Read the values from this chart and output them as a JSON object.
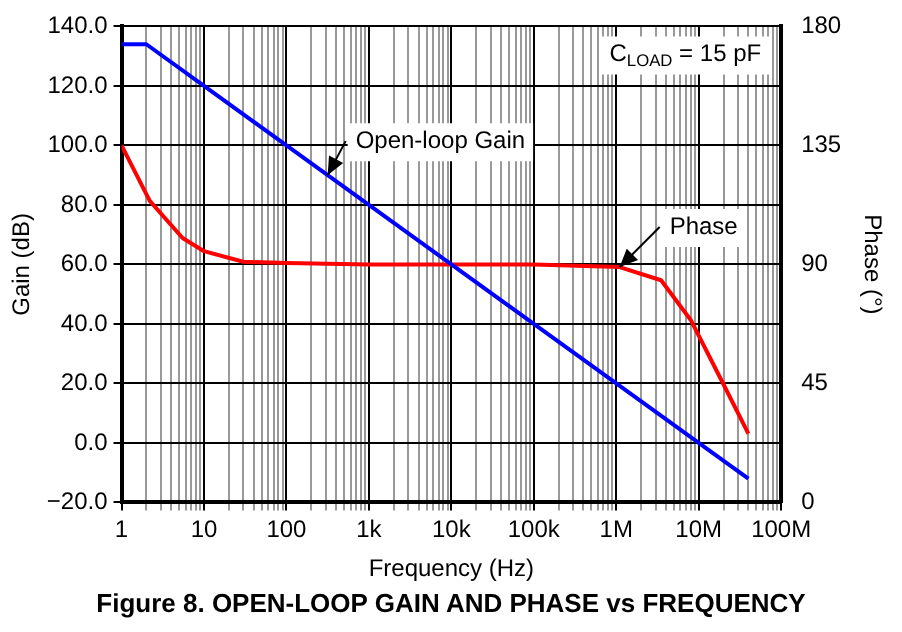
{
  "chart_data": {
    "type": "line",
    "title": "Figure 8. OPEN-LOOP GAIN AND PHASE vs FREQUENCY",
    "xlabel": "Frequency (Hz)",
    "ylabel": "Gain (dB)",
    "y2label": "Phase (°)",
    "log": "x",
    "grid": true,
    "legend": false,
    "marker": "none",
    "line_style": "solid",
    "xlim": [
      1,
      100000000
    ],
    "xticks": [
      1,
      10,
      100,
      {
        "value": 1000,
        "label": "1k"
      },
      {
        "value": 10000,
        "label": "10k"
      },
      {
        "value": 100000,
        "label": "100k"
      },
      {
        "value": 1000000,
        "label": "1M"
      },
      {
        "value": 10000000,
        "label": "10M"
      },
      {
        "value": 100000000,
        "label": "100M"
      },
      {
        "value": 2,
        "label": null
      },
      {
        "value": 3,
        "label": null
      },
      {
        "value": 4,
        "label": null
      },
      {
        "value": 5,
        "label": null
      },
      {
        "value": 6,
        "label": null
      },
      {
        "value": 7,
        "label": null
      },
      {
        "value": 8,
        "label": null
      },
      {
        "value": 9,
        "label": null
      },
      {
        "value": 20,
        "label": null
      },
      {
        "value": 30,
        "label": null
      },
      {
        "value": 40,
        "label": null
      },
      {
        "value": 50,
        "label": null
      },
      {
        "value": 60,
        "label": null
      },
      {
        "value": 70,
        "label": null
      },
      {
        "value": 80,
        "label": null
      },
      {
        "value": 90,
        "label": null
      },
      {
        "value": 200,
        "label": null
      },
      {
        "value": 300,
        "label": null
      },
      {
        "value": 400,
        "label": null
      },
      {
        "value": 500,
        "label": null
      },
      {
        "value": 600,
        "label": null
      },
      {
        "value": 700,
        "label": null
      },
      {
        "value": 800,
        "label": null
      },
      {
        "value": 900,
        "label": null
      },
      {
        "value": 2000,
        "label": null
      },
      {
        "value": 3000,
        "label": null
      },
      {
        "value": 4000,
        "label": null
      },
      {
        "value": 5000,
        "label": null
      },
      {
        "value": 6000,
        "label": null
      },
      {
        "value": 7000,
        "label": null
      },
      {
        "value": 8000,
        "label": null
      },
      {
        "value": 9000,
        "label": null
      },
      {
        "value": 20000,
        "label": null
      },
      {
        "value": 30000,
        "label": null
      },
      {
        "value": 40000,
        "label": null
      },
      {
        "value": 50000,
        "label": null
      },
      {
        "value": 60000,
        "label": null
      },
      {
        "value": 70000,
        "label": null
      },
      {
        "value": 80000,
        "label": null
      },
      {
        "value": 90000,
        "label": null
      },
      {
        "value": 200000,
        "label": null
      },
      {
        "value": 300000,
        "label": null
      },
      {
        "value": 400000,
        "label": null
      },
      {
        "value": 500000,
        "label": null
      },
      {
        "value": 600000,
        "label": null
      },
      {
        "value": 700000,
        "label": null
      },
      {
        "value": 800000,
        "label": null
      },
      {
        "value": 900000,
        "label": null
      },
      {
        "value": 2000000,
        "label": null
      },
      {
        "value": 3000000,
        "label": null
      },
      {
        "value": 4000000,
        "label": null
      },
      {
        "value": 5000000,
        "label": null
      },
      {
        "value": 6000000,
        "label": null
      },
      {
        "value": 7000000,
        "label": null
      },
      {
        "value": 8000000,
        "label": null
      },
      {
        "value": 9000000,
        "label": null
      },
      {
        "value": 20000000,
        "label": null
      },
      {
        "value": 30000000,
        "label": null
      },
      {
        "value": 40000000,
        "label": null
      },
      {
        "value": 50000000,
        "label": null
      },
      {
        "value": 60000000,
        "label": null
      },
      {
        "value": 70000000,
        "label": null
      },
      {
        "value": 80000000,
        "label": null
      },
      {
        "value": 90000000,
        "label": null
      }
    ],
    "ylim": [
      -20,
      140
    ],
    "yticks": [
      {
        "value": -20,
        "label": "−20.0"
      },
      {
        "value": 0,
        "label": "0.0"
      },
      {
        "value": 20,
        "label": "20.0"
      },
      {
        "value": 40,
        "label": "40.0"
      },
      {
        "value": 60,
        "label": "60.0"
      },
      {
        "value": 80,
        "label": "80.0"
      },
      {
        "value": 100,
        "label": "100.0"
      },
      {
        "value": 120,
        "label": "120.0"
      },
      {
        "value": 140,
        "label": "140.0"
      }
    ],
    "y2lim": [
      0,
      180
    ],
    "y2ticks": [
      0,
      45,
      90,
      135,
      180
    ],
    "series": [
      {
        "name": "Open-loop Gain",
        "color": "#0000ff",
        "x": [
          1,
          2,
          10,
          100,
          1000,
          10000,
          100000,
          1000000,
          10000000,
          40000000
        ],
        "values": [
          134,
          134,
          120,
          100,
          80,
          60,
          40,
          20,
          0,
          -12
        ]
      },
      {
        "name": "Phase",
        "color": "#ff0000",
        "axis": "y2",
        "x": [
          1,
          2.2,
          5.5,
          10,
          30,
          100,
          1000,
          10000,
          100000,
          1100000,
          3500000,
          8000000,
          19000000,
          40000000
        ],
        "values": [
          135,
          114,
          100,
          95,
          91,
          90.5,
          90,
          90,
          90,
          89,
          84,
          69,
          46,
          26
        ]
      }
    ],
    "annotations": [
      "C$_{LOAD}$ = 15 pF"
    ]
  }
}
